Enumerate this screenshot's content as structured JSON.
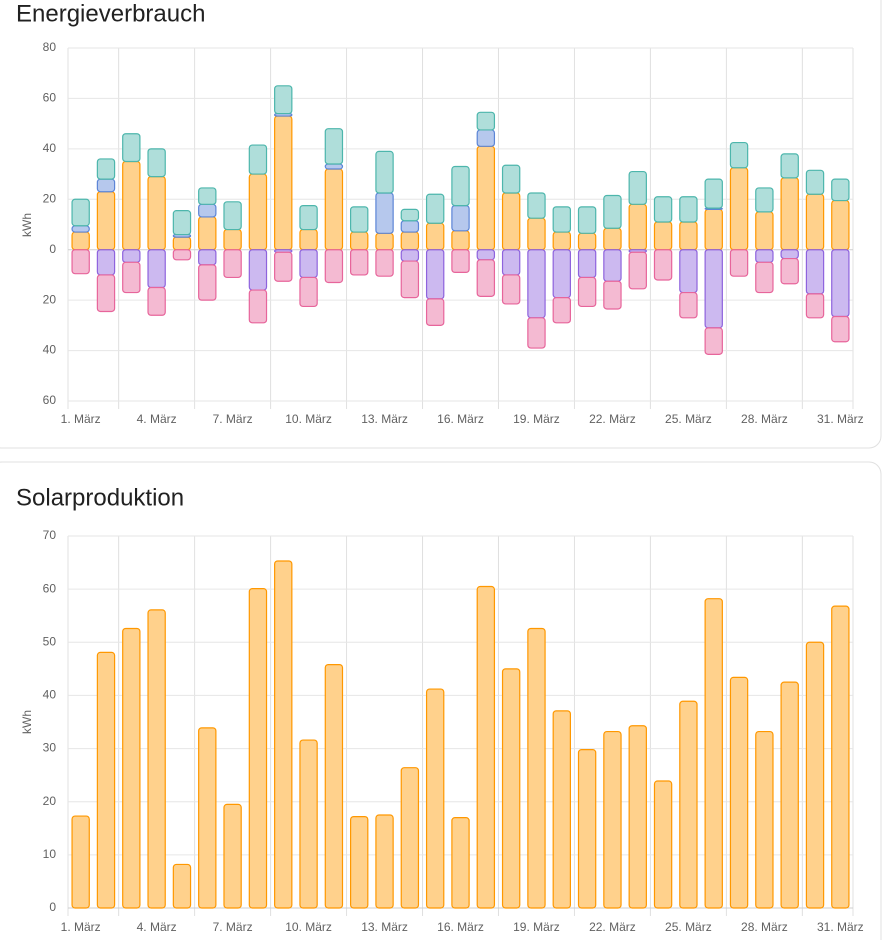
{
  "chart_data": [
    {
      "type": "bar",
      "stacked": true,
      "title": "Energieverbrauch",
      "ylabel": "kWh",
      "categories": [
        "1. März",
        null,
        null,
        "4. März",
        null,
        null,
        "7. März",
        null,
        null,
        "10. März",
        null,
        null,
        "13. März",
        null,
        null,
        "16. März",
        null,
        null,
        "19. März",
        null,
        null,
        "22. März",
        null,
        null,
        "25. März",
        null,
        null,
        "28. März",
        null,
        null,
        "31. März"
      ],
      "series": [
        {
          "color": "#ff9800",
          "values": [
            7,
            23,
            35,
            29,
            5,
            13,
            8,
            30,
            53,
            8,
            32,
            7,
            6.5,
            7,
            10.5,
            7.5,
            41,
            22.5,
            12.5,
            7,
            6.5,
            8.5,
            18,
            11,
            11,
            16,
            32.5,
            15,
            28.5,
            22,
            19.5
          ]
        },
        {
          "color": "#5c85d6",
          "values": [
            2.5,
            5,
            0,
            0,
            1,
            5,
            0,
            0,
            1,
            0,
            2,
            0,
            16,
            4.5,
            0,
            10,
            6.5,
            0,
            0,
            0,
            0,
            0,
            0,
            0,
            0,
            0.5,
            0,
            0,
            0,
            0,
            0
          ]
        },
        {
          "color": "#4db6ac",
          "values": [
            10.5,
            8,
            11,
            11,
            9.5,
            6.5,
            11,
            11.5,
            11,
            9.5,
            14,
            10,
            16.5,
            4.5,
            11.5,
            15.5,
            7,
            11,
            10,
            10,
            10.5,
            13,
            13,
            10,
            10,
            11.5,
            10,
            9.5,
            9.5,
            9.5,
            8.5
          ]
        },
        {
          "color": "#8e63dd",
          "values": [
            0,
            -10,
            -5,
            -15,
            0,
            -6,
            0,
            -16,
            -1,
            -11,
            0,
            0,
            0,
            -4.5,
            -19.5,
            0,
            -4,
            -10,
            -27,
            -19,
            -11,
            -12.5,
            -1,
            0,
            -17,
            -31,
            0,
            -5,
            -3.5,
            -17.5,
            -26.5
          ]
        },
        {
          "color": "#e7659b",
          "values": [
            -9.5,
            -14.5,
            -12,
            -11,
            -4,
            -14,
            -11,
            -13,
            -11.5,
            -11.5,
            -13,
            -10,
            -10.5,
            -14.5,
            -10.5,
            -9,
            -14.5,
            -11.5,
            -12,
            -10,
            -11.5,
            -11,
            -14.5,
            -12,
            -10,
            -10.5,
            -10.5,
            -12,
            -10,
            -9.5,
            -10
          ]
        }
      ],
      "ylim": [
        -60,
        80
      ],
      "yticks": [
        80,
        60,
        40,
        20,
        0,
        {
          "value": -20,
          "label": "20"
        },
        {
          "value": -40,
          "label": "40"
        },
        {
          "value": -60,
          "label": "60"
        }
      ],
      "grid": true
    },
    {
      "type": "bar",
      "title": "Solarproduktion",
      "ylabel": "kWh",
      "categories": [
        "1. März",
        null,
        null,
        "4. März",
        null,
        null,
        "7. März",
        null,
        null,
        "10. März",
        null,
        null,
        "13. März",
        null,
        null,
        "16. März",
        null,
        null,
        "19. März",
        null,
        null,
        "22. März",
        null,
        null,
        "25. März",
        null,
        null,
        "28. März",
        null,
        null,
        "31. März"
      ],
      "series": [
        {
          "color": "#ff9800",
          "values": [
            17.3,
            48.1,
            52.6,
            56.1,
            8.2,
            33.9,
            19.5,
            60.1,
            65.3,
            31.6,
            45.8,
            17.2,
            17.5,
            26.4,
            41.2,
            17.0,
            60.5,
            45.0,
            52.6,
            37.1,
            29.8,
            33.2,
            34.3,
            23.9,
            38.9,
            58.2,
            43.4,
            33.2,
            42.5,
            50.0,
            56.8
          ]
        }
      ],
      "ylim": [
        0,
        70
      ],
      "yticks": [
        0,
        10,
        20,
        30,
        40,
        50,
        60,
        70
      ],
      "grid": true
    }
  ]
}
